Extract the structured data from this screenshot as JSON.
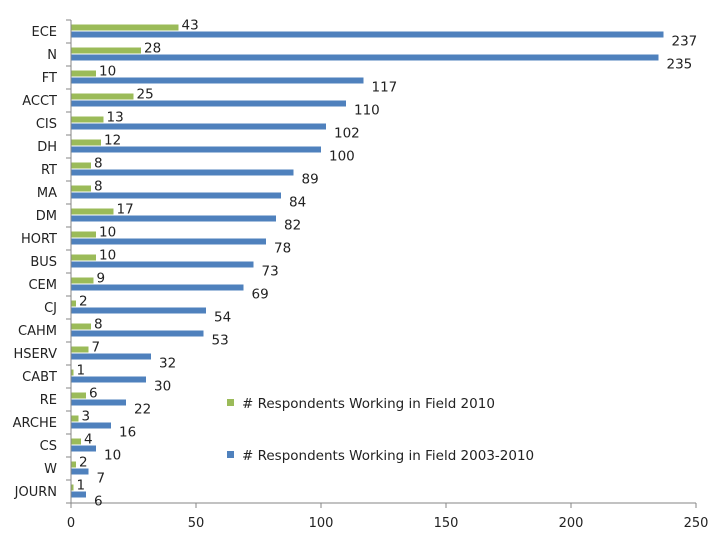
{
  "chart_data": {
    "type": "bar",
    "orientation": "horizontal",
    "categories": [
      "ECE",
      "N",
      "FT",
      "ACCT",
      "CIS",
      "DH",
      "RT",
      "MA",
      "DM",
      "HORT",
      "BUS",
      "CEM",
      "CJ",
      "CAHM",
      "HSERV",
      "CABT",
      "RE",
      "ARCHE",
      "CS",
      "W",
      "JOURN"
    ],
    "series": [
      {
        "name": "# Respondents Working in Field 2010",
        "color": "#9bbb59",
        "values": [
          43,
          28,
          10,
          25,
          13,
          12,
          8,
          8,
          17,
          10,
          10,
          9,
          2,
          8,
          7,
          1,
          6,
          3,
          4,
          2,
          1
        ]
      },
      {
        "name": "# Respondents Working in Field 2003-2010",
        "color": "#4f81bd",
        "values": [
          237,
          235,
          117,
          110,
          102,
          100,
          89,
          84,
          82,
          78,
          73,
          69,
          54,
          53,
          32,
          30,
          22,
          16,
          10,
          7,
          6
        ]
      }
    ],
    "xlim": [
      0,
      250
    ],
    "xticks": [
      0,
      50,
      100,
      150,
      200,
      250
    ],
    "grid": false,
    "legend_position": "right-center",
    "title": "",
    "xlabel": "",
    "ylabel": ""
  }
}
